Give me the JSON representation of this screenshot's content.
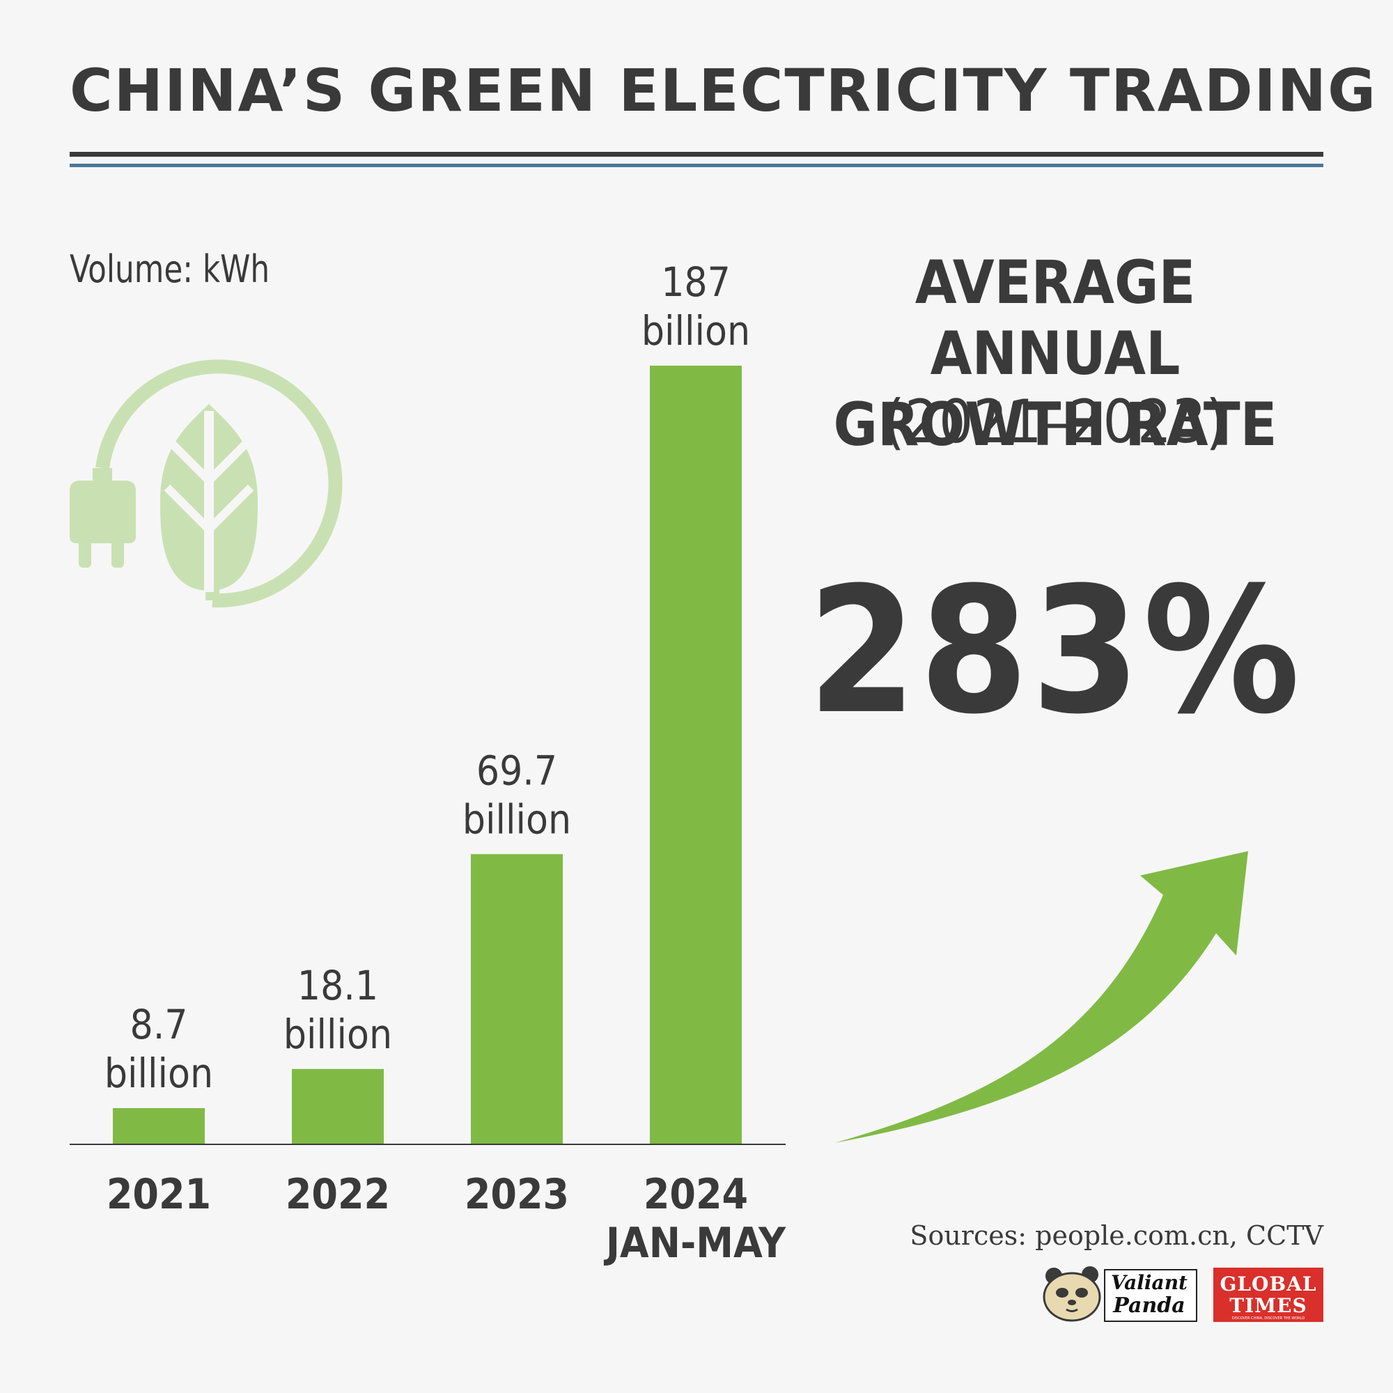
{
  "title": "CHINA’S GREEN ELECTRICITY TRADING",
  "unit_label": "Volume: kWh",
  "stat": {
    "heading_line1": "AVERAGE ANNUAL",
    "heading_line2": "GROWTH RATE",
    "period": "(2021–2023)",
    "value": "283%"
  },
  "sources": "Sources: people.com.cn, CCTV",
  "logos": {
    "valiant_panda_line1": "Valiant",
    "valiant_panda_line2": "Panda",
    "global_times_line1": "GLOBAL",
    "global_times_line2": "TIMES",
    "global_times_tagline": "DISCOVER CHINA, DISCOVER THE WORLD"
  },
  "colors": {
    "bar": "#80ba45",
    "icon": "#c9e1b2",
    "text": "#3a3a3a",
    "rule_blue": "#4a7898",
    "brand_red": "#d9302b"
  },
  "icons": [
    "green-energy-plug-leaf-icon",
    "growth-arrow-icon"
  ],
  "chart_data": {
    "type": "bar",
    "categories": [
      [
        "2021"
      ],
      [
        "2022"
      ],
      [
        "2023"
      ],
      [
        "2024",
        "JAN-MAY"
      ]
    ],
    "values": [
      8.7,
      18.1,
      69.7,
      187
    ],
    "value_labels": [
      [
        "8.7",
        "billion"
      ],
      [
        "18.1",
        "billion"
      ],
      [
        "69.7",
        "billion"
      ],
      [
        "187",
        "billion"
      ]
    ],
    "unit": "billion kWh",
    "ylim": [
      0,
      187
    ],
    "grid": false
  }
}
